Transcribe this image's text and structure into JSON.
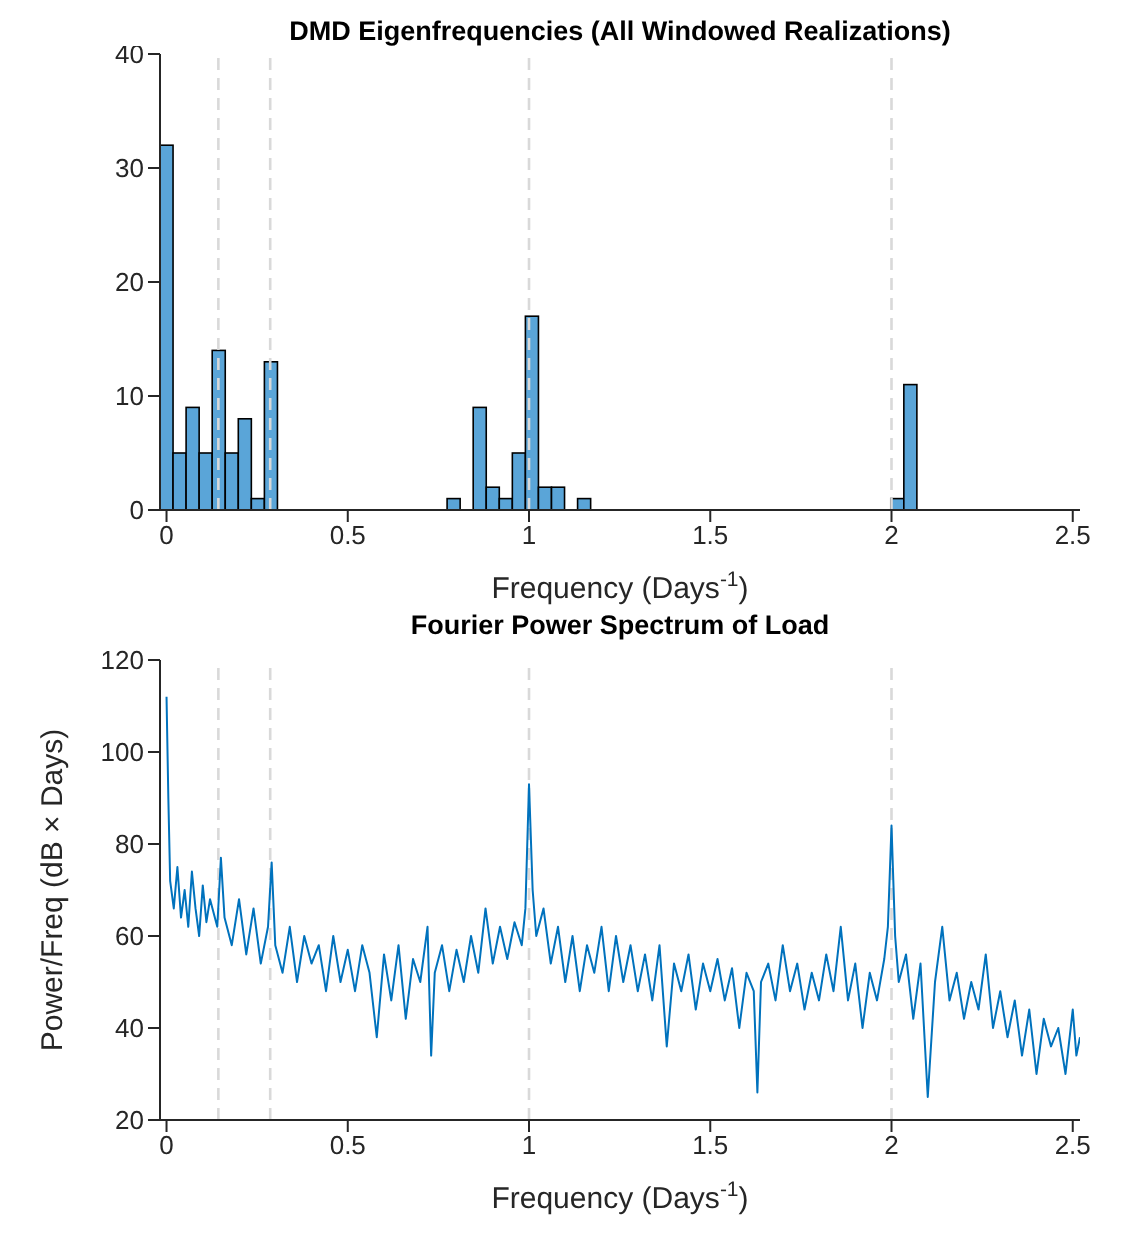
{
  "chart_data": [
    {
      "type": "histogram",
      "title": "DMD Eigenfrequencies (All Windowed Realizations)",
      "xlabel": "Frequency (Days$^{-1}$)",
      "color": "#5aa5d8",
      "bins": [
        -0.018,
        0.018,
        0.054,
        0.09,
        0.126,
        0.162,
        0.198,
        0.234,
        0.27,
        0.306,
        0.342,
        0.378,
        0.414,
        0.45,
        0.486,
        0.522,
        0.558,
        0.594,
        0.63,
        0.666,
        0.702,
        0.738,
        0.774,
        0.81,
        0.846,
        0.882,
        0.918,
        0.954,
        0.99,
        1.026,
        1.062,
        1.098,
        1.134,
        1.17,
        1.206,
        1.242,
        1.278,
        1.314,
        1.35,
        1.386,
        1.422,
        1.458,
        1.494,
        1.53,
        1.566,
        1.602,
        1.638,
        1.674,
        1.71,
        1.746,
        1.782,
        1.818,
        1.854,
        1.89,
        1.926,
        1.962,
        1.998,
        2.034,
        2.07
      ],
      "values": [
        32,
        5,
        9,
        5,
        14,
        5,
        8,
        1,
        13,
        0,
        0,
        0,
        0,
        0,
        0,
        0,
        0,
        0,
        0,
        0,
        0,
        0,
        1,
        0,
        9,
        2,
        1,
        5,
        17,
        2,
        2,
        0,
        1,
        0,
        0,
        0,
        0,
        0,
        0,
        0,
        0,
        0,
        0,
        0,
        0,
        0,
        0,
        0,
        0,
        0,
        0,
        0,
        0,
        0,
        0,
        0,
        1,
        11
      ],
      "xlim": [
        -0.018,
        2.52
      ],
      "xticks": [
        0,
        0.5,
        1,
        1.5,
        2,
        2.5
      ],
      "ylim": [
        0,
        40
      ],
      "yticks": [
        0,
        10,
        20,
        30,
        40
      ],
      "grid": false,
      "ref_lines": [
        {
          "axis": "x",
          "value": 0.143,
          "color": "#d9d9d9",
          "line_style": "dashed"
        },
        {
          "axis": "x",
          "value": 0.286,
          "color": "#d9d9d9",
          "line_style": "dashed"
        },
        {
          "axis": "x",
          "value": 1,
          "color": "#d9d9d9",
          "line_style": "dashed"
        },
        {
          "axis": "x",
          "value": 2,
          "color": "#d9d9d9",
          "line_style": "dashed"
        }
      ]
    },
    {
      "type": "line",
      "title": "Fourier Power Spectrum of Load",
      "xlabel": "Frequency (Days$^{-1}$)",
      "ylabel": "Power/Freq (dB × Days)",
      "marker": "none",
      "line_style": "solid",
      "grid": false,
      "series": [
        {
          "color": "#0072bd",
          "x": [
            0,
            0.005,
            0.01,
            0.02,
            0.03,
            0.04,
            0.05,
            0.06,
            0.07,
            0.08,
            0.09,
            0.1,
            0.11,
            0.12,
            0.14,
            0.15,
            0.16,
            0.18,
            0.2,
            0.22,
            0.24,
            0.26,
            0.28,
            0.29,
            0.3,
            0.32,
            0.34,
            0.36,
            0.38,
            0.4,
            0.42,
            0.44,
            0.46,
            0.48,
            0.5,
            0.52,
            0.54,
            0.56,
            0.58,
            0.6,
            0.62,
            0.64,
            0.66,
            0.68,
            0.7,
            0.72,
            0.73,
            0.74,
            0.76,
            0.78,
            0.8,
            0.82,
            0.84,
            0.86,
            0.88,
            0.9,
            0.92,
            0.94,
            0.96,
            0.98,
            0.99,
            1,
            1.01,
            1.02,
            1.04,
            1.06,
            1.08,
            1.1,
            1.12,
            1.14,
            1.16,
            1.18,
            1.2,
            1.22,
            1.24,
            1.26,
            1.28,
            1.3,
            1.32,
            1.34,
            1.36,
            1.38,
            1.4,
            1.42,
            1.44,
            1.46,
            1.48,
            1.5,
            1.52,
            1.54,
            1.56,
            1.58,
            1.6,
            1.62,
            1.63,
            1.64,
            1.66,
            1.68,
            1.7,
            1.72,
            1.74,
            1.76,
            1.78,
            1.8,
            1.82,
            1.84,
            1.86,
            1.88,
            1.9,
            1.92,
            1.94,
            1.96,
            1.98,
            1.99,
            2,
            2.01,
            2.02,
            2.04,
            2.06,
            2.08,
            2.1,
            2.12,
            2.14,
            2.16,
            2.18,
            2.2,
            2.22,
            2.24,
            2.26,
            2.28,
            2.3,
            2.32,
            2.34,
            2.36,
            2.38,
            2.4,
            2.42,
            2.44,
            2.46,
            2.48,
            2.5,
            2.51,
            2.52
          ],
          "values": [
            112,
            90,
            72,
            66,
            75,
            64,
            70,
            62,
            74,
            66,
            60,
            71,
            63,
            68,
            62,
            77,
            64,
            58,
            68,
            56,
            66,
            54,
            62,
            76,
            58,
            52,
            62,
            50,
            60,
            54,
            58,
            48,
            60,
            50,
            57,
            48,
            58,
            52,
            38,
            56,
            46,
            58,
            42,
            55,
            50,
            62,
            34,
            52,
            58,
            48,
            57,
            50,
            60,
            52,
            66,
            54,
            62,
            55,
            63,
            58,
            66,
            93,
            70,
            60,
            66,
            54,
            62,
            50,
            60,
            48,
            58,
            52,
            62,
            48,
            60,
            50,
            58,
            48,
            56,
            46,
            58,
            36,
            54,
            48,
            56,
            44,
            54,
            48,
            55,
            46,
            53,
            40,
            52,
            48,
            26,
            50,
            54,
            46,
            58,
            48,
            54,
            44,
            52,
            46,
            56,
            48,
            62,
            46,
            54,
            40,
            52,
            46,
            55,
            62,
            84,
            60,
            50,
            56,
            42,
            54,
            25,
            50,
            62,
            46,
            52,
            42,
            50,
            44,
            56,
            40,
            48,
            38,
            46,
            34,
            44,
            30,
            42,
            36,
            40,
            30,
            44,
            34,
            38
          ]
        }
      ],
      "xlim": [
        -0.018,
        2.52
      ],
      "xticks": [
        0,
        0.5,
        1,
        1.5,
        2,
        2.5
      ],
      "ylim": [
        20,
        120
      ],
      "yticks": [
        20,
        40,
        60,
        80,
        100,
        120
      ],
      "ref_lines": [
        {
          "axis": "x",
          "value": 0.143,
          "color": "#d9d9d9",
          "line_style": "dashed"
        },
        {
          "axis": "x",
          "value": 0.286,
          "color": "#d9d9d9",
          "line_style": "dashed"
        },
        {
          "axis": "x",
          "value": 1,
          "color": "#d9d9d9",
          "line_style": "dashed"
        },
        {
          "axis": "x",
          "value": 2,
          "color": "#d9d9d9",
          "line_style": "dashed"
        }
      ]
    }
  ]
}
